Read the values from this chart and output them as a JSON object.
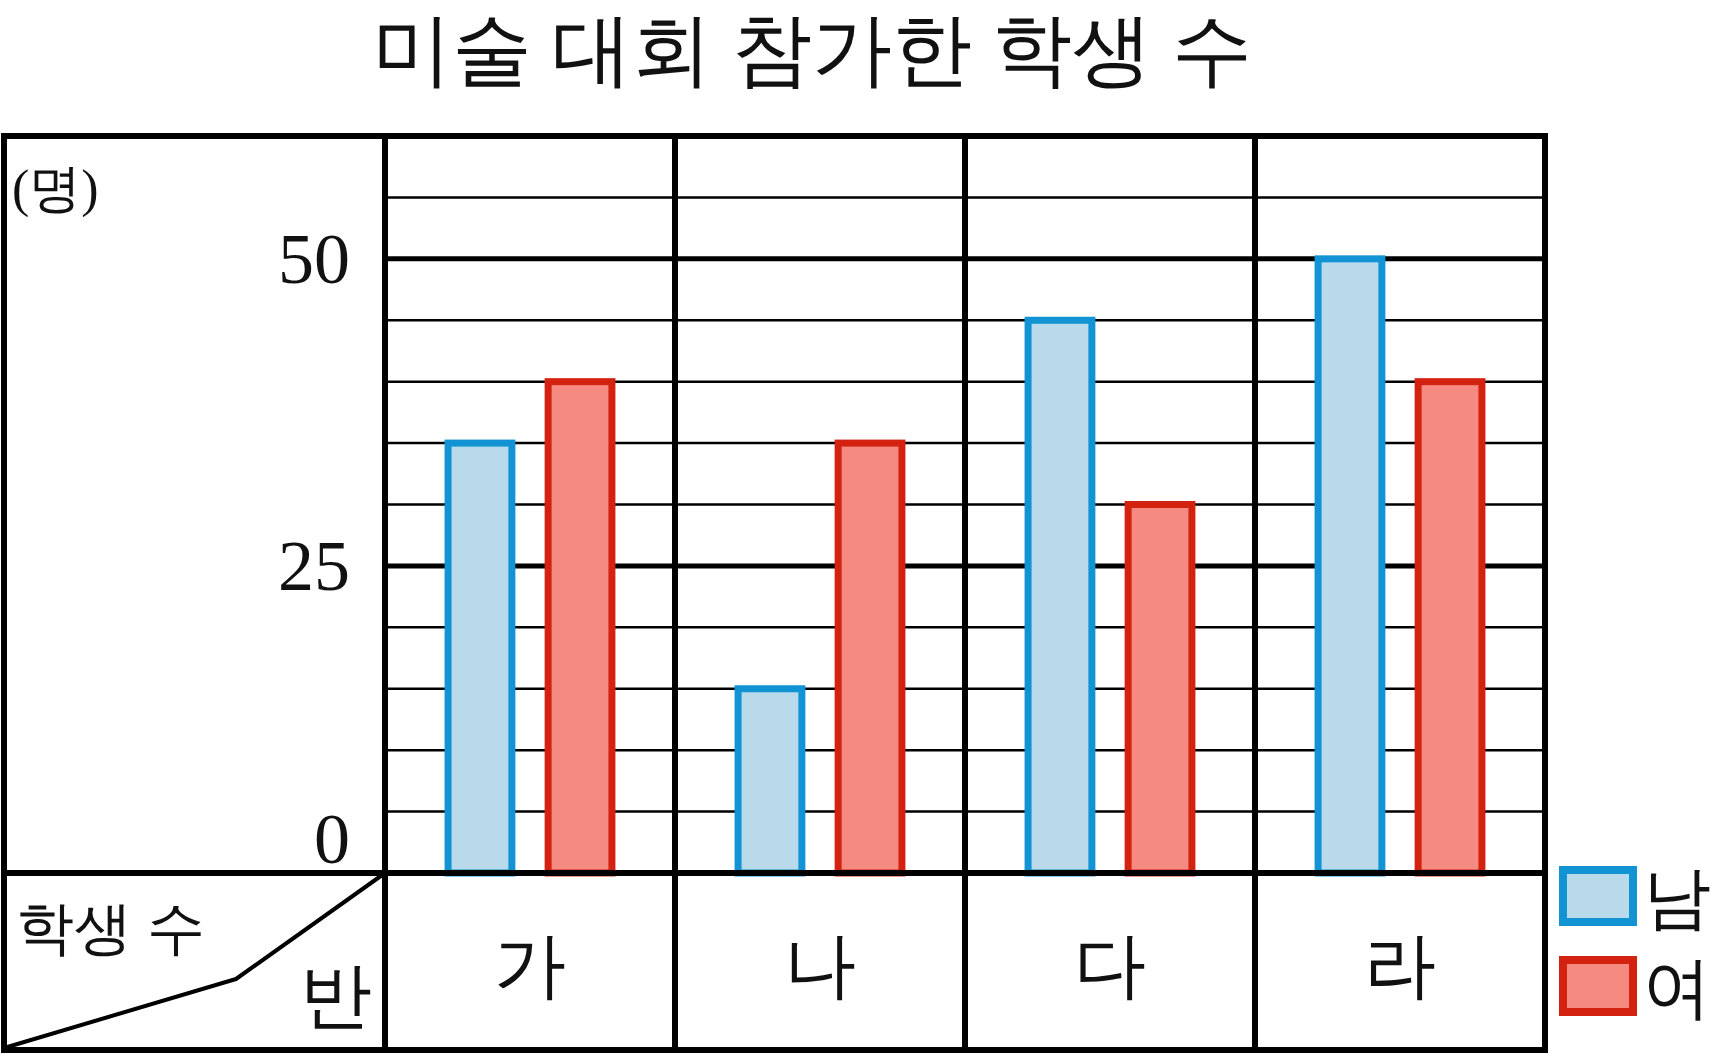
{
  "chart_data": {
    "type": "bar",
    "title": "미술 대회 참가한 학생 수",
    "ylabel": "(명)",
    "xlabel": "반",
    "annotations": [
      "학생 수"
    ],
    "categories": [
      "가",
      "나",
      "다",
      "라"
    ],
    "series": [
      {
        "name": "남",
        "color": "#b8daeb",
        "values": [
          35,
          15,
          45,
          50
        ]
      },
      {
        "name": "여",
        "color": "#f48a80",
        "values": [
          40,
          35,
          30,
          40
        ]
      }
    ],
    "ylim": [
      0,
      60
    ],
    "yticks": [
      0,
      {
        "value": 5,
        "label": null
      },
      {
        "value": 10,
        "label": null
      },
      {
        "value": 15,
        "label": null
      },
      {
        "value": 20,
        "label": null
      },
      25,
      {
        "value": 30,
        "label": null
      },
      {
        "value": 35,
        "label": null
      },
      {
        "value": 40,
        "label": null
      },
      {
        "value": 45,
        "label": null
      },
      50,
      {
        "value": 55,
        "label": null
      }
    ],
    "grid": "y",
    "legend": "bottom right"
  }
}
